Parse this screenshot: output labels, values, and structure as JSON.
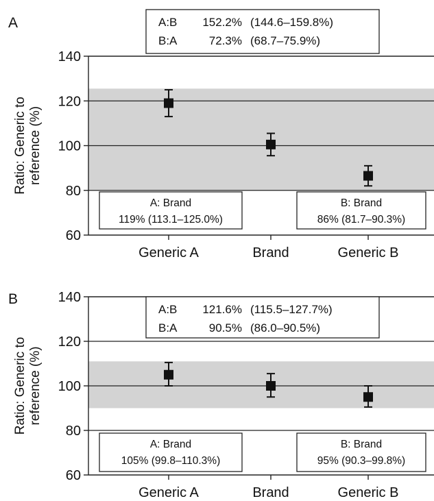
{
  "chart_data": [
    {
      "type": "scatter",
      "panel_label": "A",
      "ylabel": "Ratio: Generic to reference (%)",
      "ylim": [
        60,
        140
      ],
      "yticks": [
        60,
        80,
        100,
        120,
        140
      ],
      "grid": "horizontal gridlines at 80, 100, 120",
      "categories": [
        "Generic A",
        "Brand",
        "Generic B"
      ],
      "points": [
        {
          "category": "Generic A",
          "value": 119,
          "lower": 113,
          "upper": 125
        },
        {
          "category": "Brand",
          "value": 100.5,
          "lower": 95.5,
          "upper": 105.5
        },
        {
          "category": "Generic B",
          "value": 86.5,
          "lower": 82,
          "upper": 91
        }
      ],
      "band": {
        "lower": 80,
        "upper": 125.5,
        "color": "#d3d3d3"
      },
      "ratio_box": {
        "line1": {
          "label": "A:B",
          "value": "152.2%",
          "ci": "(144.6–159.8%)"
        },
        "line2": {
          "label": "B:A",
          "value": "72.3%",
          "ci": "(68.7–75.9%)"
        }
      },
      "left_box": {
        "line1": "A: Brand",
        "line2": "119% (113.1–125.0%)"
      },
      "right_box": {
        "line1": "B: Brand",
        "line2": "86% (81.7–90.3%)"
      }
    },
    {
      "type": "scatter",
      "panel_label": "B",
      "ylabel": "Ratio: Generic to reference (%)",
      "ylim": [
        60,
        140
      ],
      "yticks": [
        60,
        80,
        100,
        120,
        140
      ],
      "grid": "horizontal gridlines at 80, 100, 120",
      "categories": [
        "Generic A",
        "Brand",
        "Generic B"
      ],
      "points": [
        {
          "category": "Generic A",
          "value": 105,
          "lower": 100,
          "upper": 110.5
        },
        {
          "category": "Brand",
          "value": 100,
          "lower": 95,
          "upper": 105.5
        },
        {
          "category": "Generic B",
          "value": 95,
          "lower": 90.5,
          "upper": 100
        }
      ],
      "band": {
        "lower": 90,
        "upper": 111,
        "color": "#d3d3d3"
      },
      "ratio_box": {
        "line1": {
          "label": "A:B",
          "value": "121.6%",
          "ci": "(115.5–127.7%)"
        },
        "line2": {
          "label": "B:A",
          "value": "90.5%",
          "ci": "(86.0–90.5%)"
        }
      },
      "left_box": {
        "line1": "A: Brand",
        "line2": "105% (99.8–110.3%)"
      },
      "right_box": {
        "line1": "B: Brand",
        "line2": "95% (90.3–99.8%)"
      }
    }
  ]
}
